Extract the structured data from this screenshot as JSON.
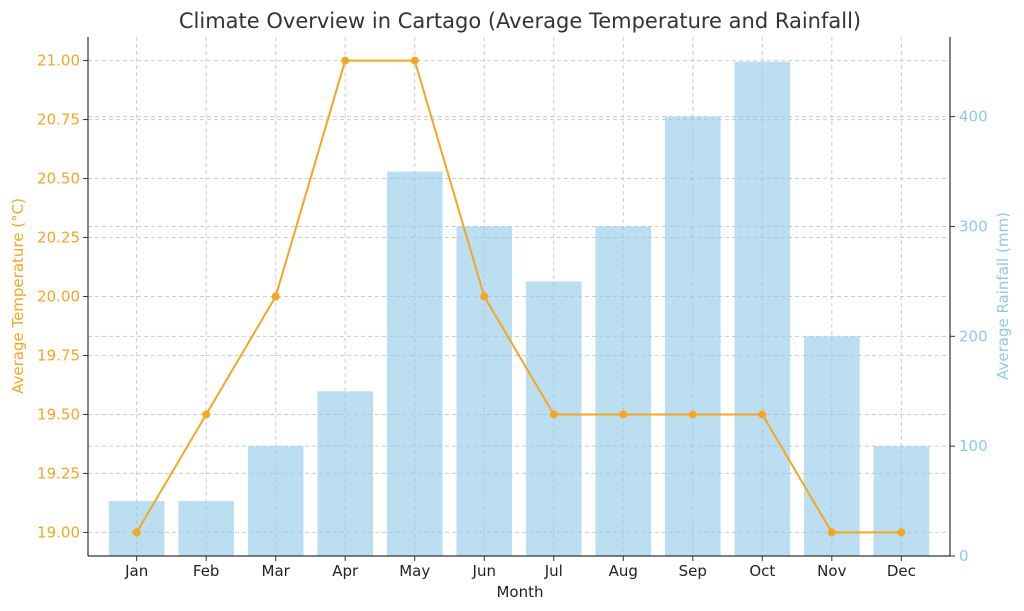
{
  "chart_data": {
    "type": "bar+line",
    "title": "Climate Overview in Cartago (Average Temperature and Rainfall)",
    "xlabel": "Month",
    "categories": [
      "Jan",
      "Feb",
      "Mar",
      "Apr",
      "May",
      "Jun",
      "Jul",
      "Aug",
      "Sep",
      "Oct",
      "Nov",
      "Dec"
    ],
    "series": [
      {
        "name": "Average Temperature (°C)",
        "kind": "line",
        "axis": "left",
        "color": "#f5a623",
        "values": [
          19.0,
          19.5,
          20.0,
          21.0,
          21.0,
          20.0,
          19.5,
          19.5,
          19.5,
          19.5,
          19.0,
          19.0
        ]
      },
      {
        "name": "Average Rainfall (mm)",
        "kind": "bar",
        "axis": "right",
        "color": "#8ecae6",
        "values": [
          50,
          50,
          100,
          150,
          350,
          300,
          250,
          300,
          400,
          450,
          200,
          100
        ]
      }
    ],
    "left_axis": {
      "label": "Average Temperature (°C)",
      "range": [
        18.9,
        21.1
      ],
      "ticks": [
        "19.00",
        "19.25",
        "19.50",
        "19.75",
        "20.00",
        "20.25",
        "20.50",
        "20.75",
        "21.00"
      ]
    },
    "right_axis": {
      "label": "Average Rainfall (mm)",
      "range": [
        0,
        472.5
      ],
      "ticks": [
        "0",
        "100",
        "200",
        "300",
        "400"
      ]
    },
    "grid": true
  }
}
